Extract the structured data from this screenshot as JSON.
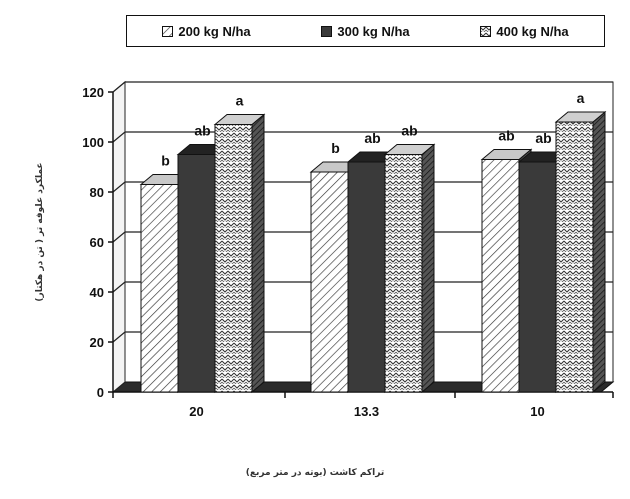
{
  "chart_data": {
    "type": "bar",
    "style": "3d-clustered",
    "categories": [
      "20",
      "13.3",
      "10"
    ],
    "series": [
      {
        "name": "200 kg N/ha",
        "values": [
          83,
          88,
          93
        ],
        "letters": [
          "b",
          "b",
          "ab"
        ],
        "pattern": "diagonal-hatch"
      },
      {
        "name": "300 kg N/ha",
        "values": [
          95,
          92,
          92
        ],
        "letters": [
          "ab",
          "ab",
          "ab"
        ],
        "pattern": "solid-dark"
      },
      {
        "name": "400 kg N/ha",
        "values": [
          107,
          95,
          108
        ],
        "letters": [
          "a",
          "ab",
          "a"
        ],
        "pattern": "zigzag"
      }
    ],
    "ylim": [
      0,
      120
    ],
    "yticks": [
      "0",
      "20",
      "40",
      "60",
      "80",
      "100",
      "120"
    ],
    "grid": true,
    "legend_position": "top",
    "ylabel": "عملکرد علوفه تر ( تن در هکتار)",
    "xlabel": "تراکم کاشت (بوته در متر مربع)",
    "colors": {
      "dark": "#3a3a3a",
      "light": "#ffffff",
      "stroke": "#111111"
    }
  }
}
